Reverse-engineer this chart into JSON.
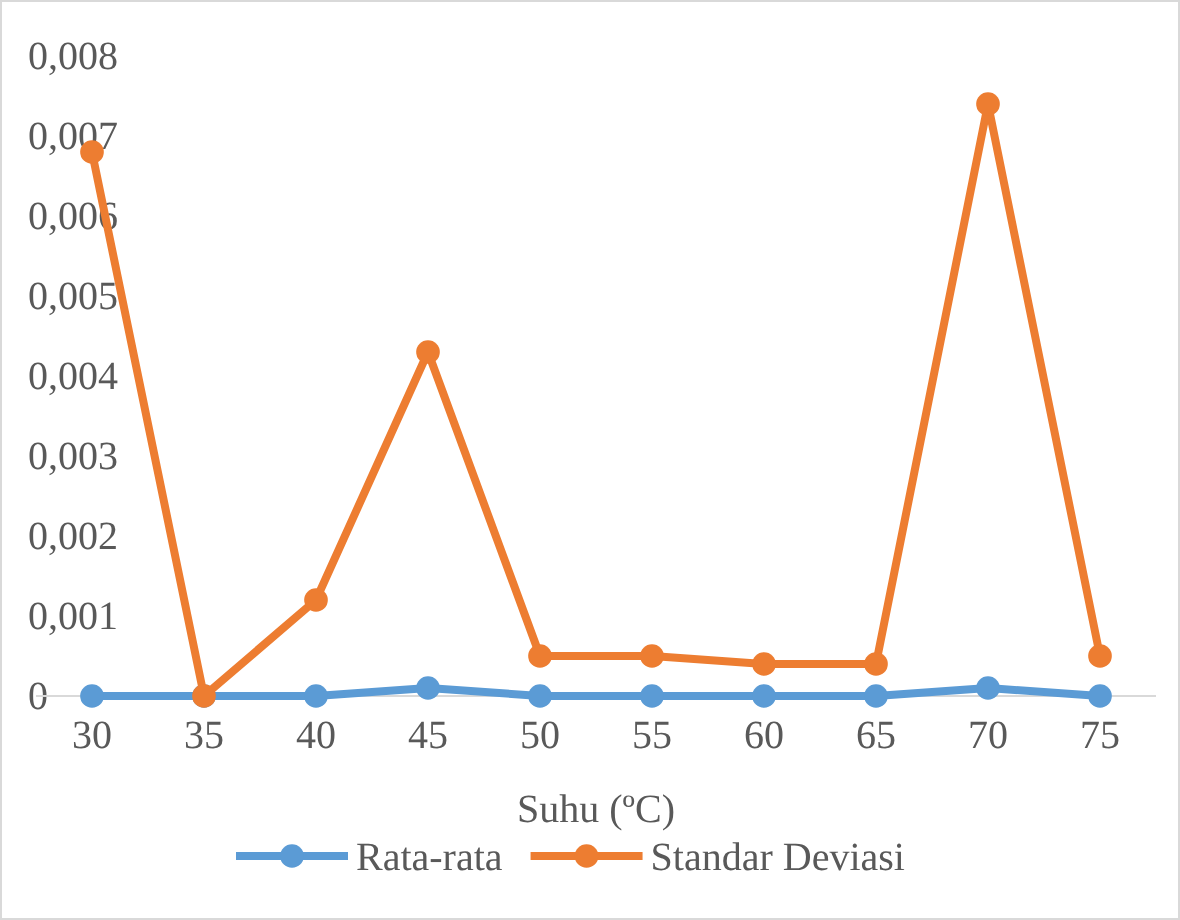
{
  "chart_data": {
    "type": "line",
    "xlabel": "Suhu (ºC)",
    "categories": [
      "30",
      "35",
      "40",
      "45",
      "50",
      "55",
      "60",
      "65",
      "70",
      "75"
    ],
    "series": [
      {
        "name": "Rata-rata",
        "color": "#5b9bd5",
        "values": [
          0,
          0,
          0,
          0.0001,
          0,
          0,
          0,
          0,
          0.0001,
          0
        ]
      },
      {
        "name": "Standar Deviasi",
        "color": "#ed7d31",
        "values": [
          0.0068,
          0,
          0.0012,
          0.0043,
          0.0005,
          0.0005,
          0.0004,
          0.0004,
          0.0074,
          0.0005
        ]
      }
    ],
    "ylim": [
      0,
      0.008
    ],
    "yticks": [
      {
        "value": 0,
        "label": "0"
      },
      {
        "value": 0.001,
        "label": "0,001"
      },
      {
        "value": 0.002,
        "label": "0,002"
      },
      {
        "value": 0.003,
        "label": "0,003"
      },
      {
        "value": 0.004,
        "label": "0,004"
      },
      {
        "value": 0.005,
        "label": "0,005"
      },
      {
        "value": 0.006,
        "label": "0,006"
      },
      {
        "value": 0.007,
        "label": "0,007"
      },
      {
        "value": 0.008,
        "label": "0,008"
      }
    ],
    "grid": false,
    "legend": "bottom",
    "marker": "circle",
    "line_style": "solid"
  }
}
